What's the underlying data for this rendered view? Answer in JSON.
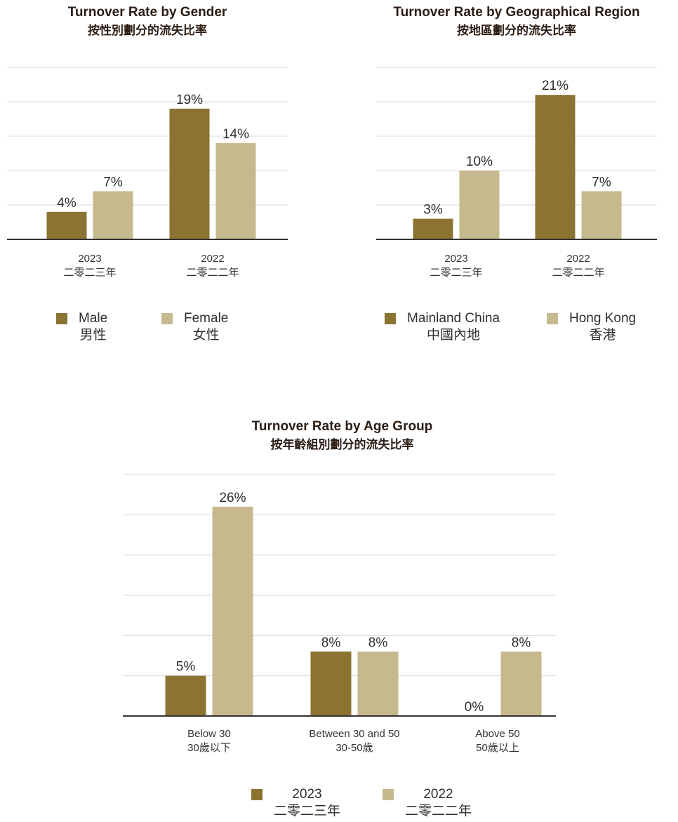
{
  "colors": {
    "y2023": "#8b7432",
    "y2022": "#c7b98e",
    "grid": "#d9d9d9",
    "axis": "#333333"
  },
  "chart_data": [
    {
      "id": "gender",
      "type": "bar",
      "title": "Turnover Rate by Gender",
      "subtitle": "按性別劃分的流失比率",
      "categories": [
        "2023\n二零二三年",
        "2022\n二零二二年"
      ],
      "series": [
        {
          "name": "Male 男性",
          "values": [
            4,
            19
          ],
          "color": "#8b7432"
        },
        {
          "name": "Female 女性",
          "values": [
            7,
            14
          ],
          "color": "#c7b98e"
        }
      ],
      "data_labels": [
        [
          "4%",
          "19%"
        ],
        [
          "7%",
          "14%"
        ]
      ],
      "ylim": [
        0,
        25
      ],
      "grid": true,
      "legend": [
        {
          "en": "Male",
          "zh": "男性",
          "color": "#8b7432"
        },
        {
          "en": "Female",
          "zh": "女性",
          "color": "#c7b98e"
        }
      ]
    },
    {
      "id": "region",
      "type": "bar",
      "title": "Turnover Rate by Geographical Region",
      "subtitle": "按地區劃分的流失比率",
      "categories": [
        "2023\n二零二三年",
        "2022\n二零二二年"
      ],
      "series": [
        {
          "name": "Mainland China 中國內地",
          "values": [
            3,
            21
          ],
          "color": "#8b7432"
        },
        {
          "name": "Hong Kong 香港",
          "values": [
            10,
            7
          ],
          "color": "#c7b98e"
        }
      ],
      "data_labels": [
        [
          "3%",
          "21%"
        ],
        [
          "10%",
          "7%"
        ]
      ],
      "ylim": [
        0,
        25
      ],
      "grid": true,
      "legend": [
        {
          "en": "Mainland China",
          "zh": "中國內地",
          "color": "#8b7432"
        },
        {
          "en": "Hong Kong",
          "zh": "香港",
          "color": "#c7b98e"
        }
      ]
    },
    {
      "id": "age",
      "type": "bar",
      "title": "Turnover Rate by Age Group",
      "subtitle": "按年齡組別劃分的流失比率",
      "categories": [
        "Below 30\n30歲以下",
        "Between 30 and 50\n30-50歲",
        "Above 50\n50歲以上"
      ],
      "series": [
        {
          "name": "2023 二零二三年",
          "values": [
            5,
            8,
            0
          ],
          "color": "#8b7432"
        },
        {
          "name": "2022 二零二二年",
          "values": [
            26,
            8,
            8
          ],
          "color": "#c7b98e"
        }
      ],
      "data_labels": [
        [
          "5%",
          "8%",
          "0%"
        ],
        [
          "26%",
          "8%",
          "8%"
        ]
      ],
      "ylim": [
        0,
        30
      ],
      "grid": true,
      "legend": [
        {
          "en": "2023",
          "zh": "二零二三年",
          "color": "#8b7432"
        },
        {
          "en": "2022",
          "zh": "二零二二年",
          "color": "#c7b98e"
        }
      ]
    }
  ]
}
